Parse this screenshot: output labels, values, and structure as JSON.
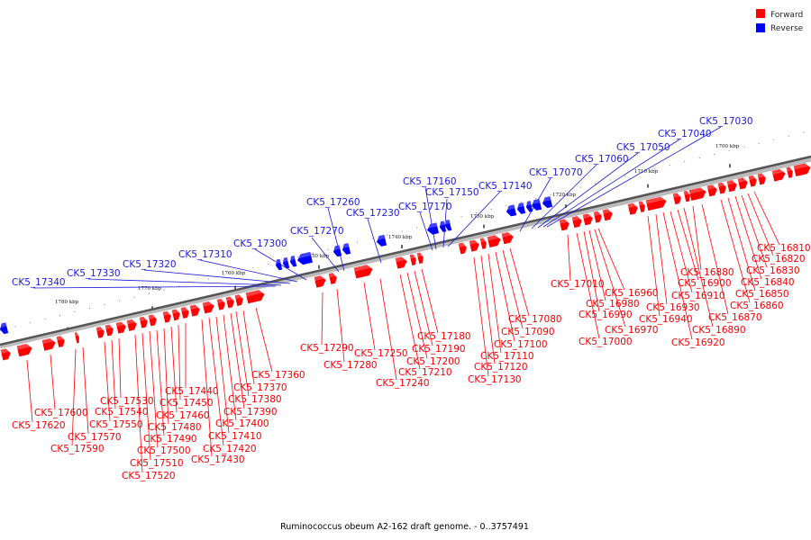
{
  "legend": {
    "forward_label": "Forward",
    "reverse_label": "Reverse",
    "forward_color": "#ff0000",
    "reverse_color": "#0000ff"
  },
  "caption": "Ruminococcus obeum A2-162 draft genome. - 0..3757491",
  "ticks": [
    "1700 kbp",
    "1710 kbp",
    "1720 kbp",
    "1730 kbp",
    "1740 kbp",
    "1750 kbp",
    "1760 kbp",
    "1770 kbp",
    "1780 kbp"
  ],
  "forward_labels": [
    "CK5_16810",
    "CK5_16820",
    "CK5_16830",
    "CK5_16840",
    "CK5_16850",
    "CK5_16860",
    "CK5_16870",
    "CK5_16880",
    "CK5_16890",
    "CK5_16900",
    "CK5_16910",
    "CK5_16920",
    "CK5_16930",
    "CK5_16940",
    "CK5_16960",
    "CK5_16970",
    "CK5_16980",
    "CK5_16990",
    "CK5_17000",
    "CK5_17010",
    "CK5_17080",
    "CK5_17090",
    "CK5_17100",
    "CK5_17110",
    "CK5_17120",
    "CK5_17130",
    "CK5_17180",
    "CK5_17190",
    "CK5_17200",
    "CK5_17210",
    "CK5_17240",
    "CK5_17250",
    "CK5_17280",
    "CK5_17290",
    "CK5_17360",
    "CK5_17370",
    "CK5_17380",
    "CK5_17390",
    "CK5_17400",
    "CK5_17410",
    "CK5_17420",
    "CK5_17430",
    "CK5_17440",
    "CK5_17450",
    "CK5_17460",
    "CK5_17480",
    "CK5_17490",
    "CK5_17500",
    "CK5_17510",
    "CK5_17520",
    "CK5_17530",
    "CK5_17540",
    "CK5_17550",
    "CK5_17570",
    "CK5_17590",
    "CK5_17600",
    "CK5_17620"
  ],
  "reverse_labels": [
    "CK5_17030",
    "CK5_17040",
    "CK5_17050",
    "CK5_17060",
    "CK5_17070",
    "CK5_17140",
    "CK5_17150",
    "CK5_17160",
    "CK5_17170",
    "CK5_17230",
    "CK5_17260",
    "CK5_17270",
    "CK5_17300",
    "CK5_17310",
    "CK5_17320",
    "CK5_17330",
    "CK5_17340"
  ]
}
